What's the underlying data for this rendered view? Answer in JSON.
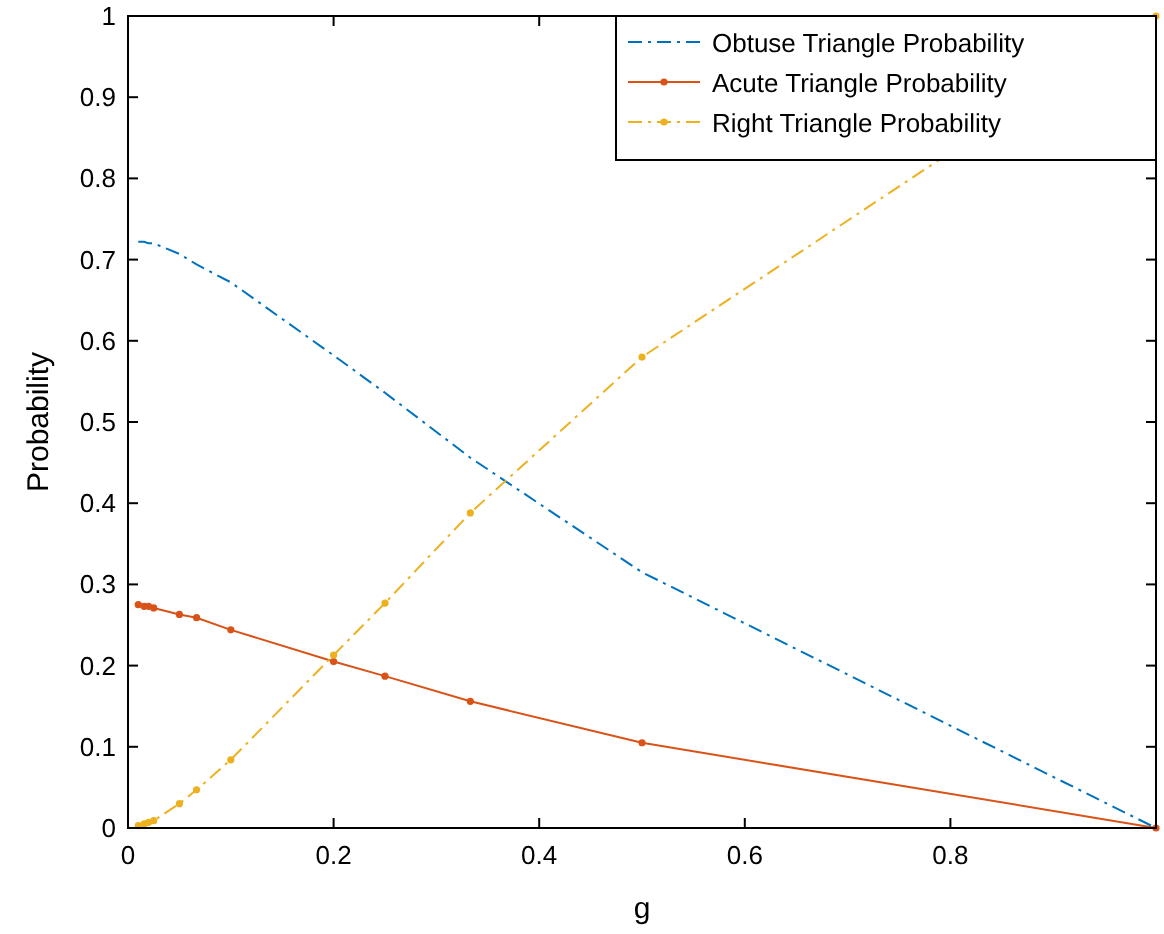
{
  "chart_data": {
    "type": "line",
    "xlabel": "g",
    "ylabel": "Probability",
    "x": [
      0.01,
      0.015625,
      0.02,
      0.025,
      0.05,
      0.0667,
      0.1,
      0.2,
      0.25,
      0.333,
      0.5,
      1
    ],
    "xlim": [
      0,
      1
    ],
    "xticks": [
      0,
      0.2,
      0.4,
      0.6,
      0.8
    ],
    "ylim": [
      0,
      1
    ],
    "yticks": [
      0,
      0.1,
      0.2,
      0.3,
      0.4,
      0.5,
      0.6,
      0.7,
      0.8,
      0.9,
      1
    ],
    "grid": false,
    "legend": "top right",
    "series": [
      {
        "name": "Obtuse Triangle Probability",
        "color": "#0072bd",
        "line_style": "dashed",
        "marker": "none",
        "values": [
          0.722,
          0.722,
          0.72,
          0.72,
          0.707,
          0.694,
          0.672,
          0.582,
          0.536,
          0.456,
          0.315,
          0
        ]
      },
      {
        "name": "Acute Triangle Probability",
        "color": "#d95319",
        "line_style": "solid",
        "marker": "circle",
        "values": [
          0.275,
          0.273,
          0.273,
          0.271,
          0.263,
          0.259,
          0.244,
          0.205,
          0.187,
          0.156,
          0.105,
          0
        ]
      },
      {
        "name": "Right Triangle Probability",
        "color": "#edb120",
        "line_style": "dashed",
        "marker": "circle",
        "values": [
          0.003,
          0.005,
          0.007,
          0.009,
          0.03,
          0.047,
          0.084,
          0.213,
          0.277,
          0.388,
          0.58,
          1
        ]
      }
    ]
  }
}
